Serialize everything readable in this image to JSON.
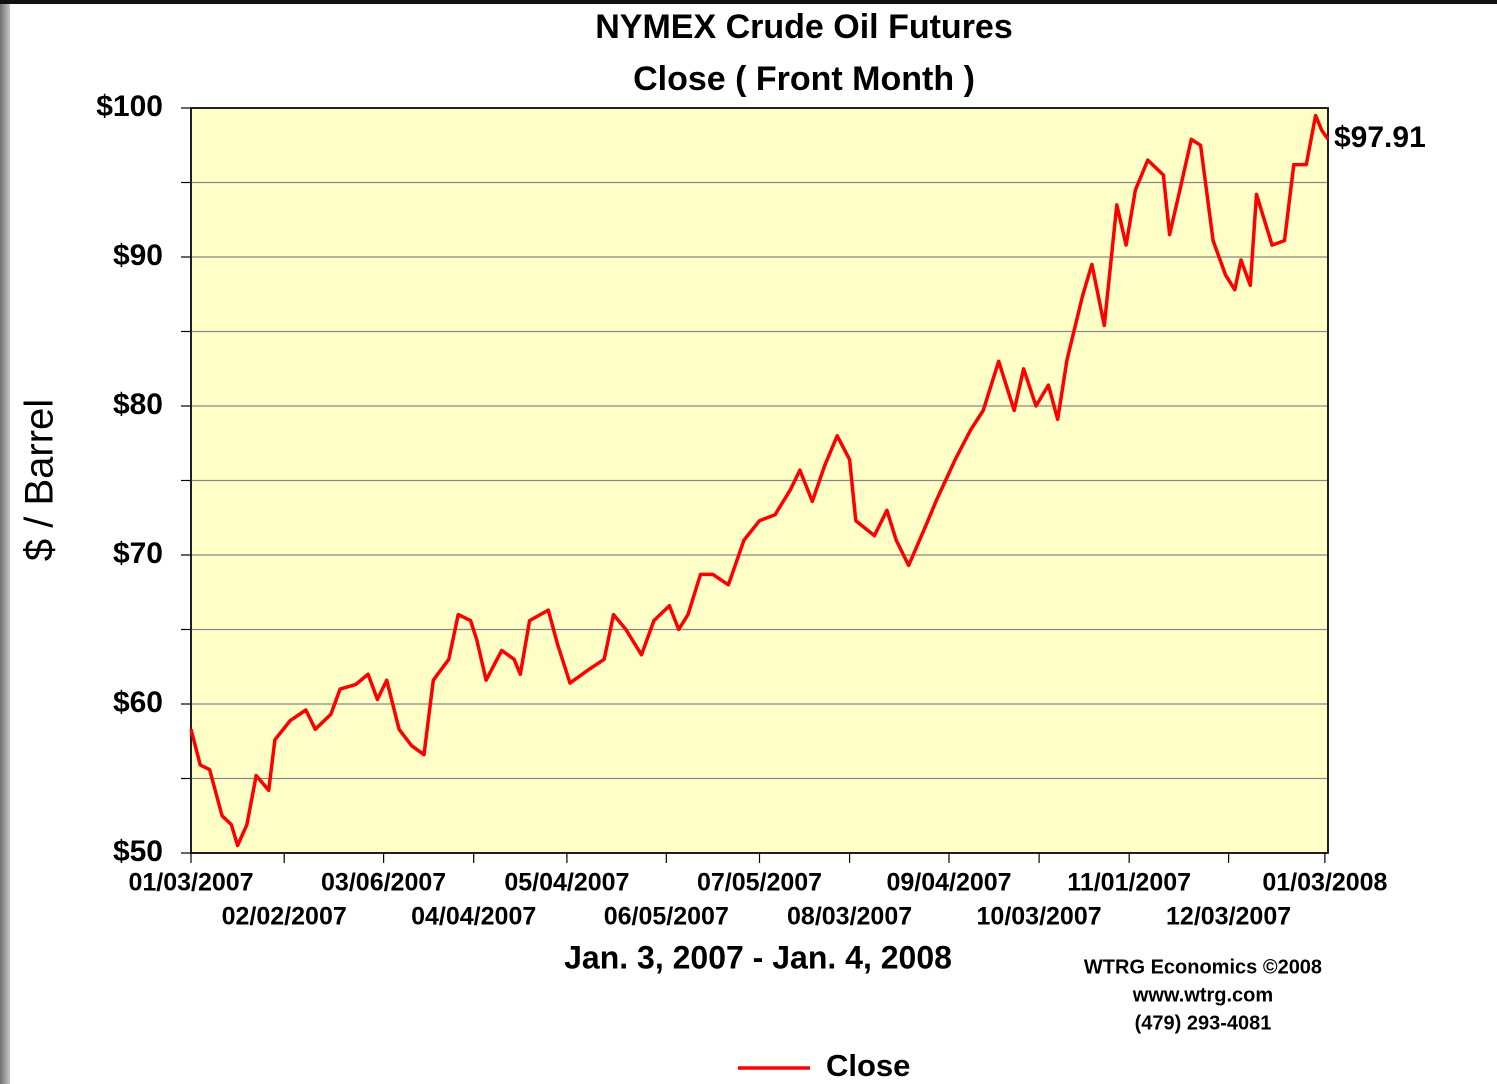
{
  "chart_data": {
    "type": "line",
    "title": "NYMEX Crude Oil Futures",
    "subtitle": "Close ( Front Month )",
    "y_label": "$ / Barrel",
    "x_label": "Jan. 3, 2007 - Jan. 4, 2008",
    "annotations": [
      "WTRG Economics  ©2008",
      "www.wtrg.com",
      "(479) 293-4081"
    ],
    "xlim": [
      "01/03/2007",
      "01/04/2008"
    ],
    "xticks": [
      "01/03/2007",
      "02/02/2007",
      "03/06/2007",
      "04/04/2007",
      "05/04/2007",
      "06/05/2007",
      "07/05/2007",
      "08/03/2007",
      "09/04/2007",
      "10/03/2007",
      "11/01/2007",
      "12/03/2007",
      "01/03/2008"
    ],
    "ylim": [
      50,
      100
    ],
    "yticks": [
      {
        "value": 50,
        "label": "$50"
      },
      {
        "value": 60,
        "label": "$60"
      },
      {
        "value": 70,
        "label": "$70"
      },
      {
        "value": 80,
        "label": "$80"
      },
      {
        "value": 90,
        "label": "$90"
      },
      {
        "value": 100,
        "label": "$100"
      }
    ],
    "yminor": [
      55,
      65,
      75,
      85,
      95
    ],
    "grid": true,
    "plot_background": "#ffffc8",
    "legend": "bottom",
    "series": [
      {
        "name": "Close",
        "color": "#ff0000",
        "x": [
          "01/03/2007",
          "01/06/2007",
          "01/09/2007",
          "01/13/2007",
          "01/16/2007",
          "01/18/2007",
          "01/21/2007",
          "01/24/2007",
          "01/28/2007",
          "01/30/2007",
          "02/04/2007",
          "02/09/2007",
          "02/12/2007",
          "02/17/2007",
          "02/20/2007",
          "02/25/2007",
          "03/01/2007",
          "03/04/2007",
          "03/07/2007",
          "03/11/2007",
          "03/15/2007",
          "03/19/2007",
          "03/22/2007",
          "03/27/2007",
          "03/30/2007",
          "04/03/2007",
          "04/05/2007",
          "04/08/2007",
          "04/13/2007",
          "04/17/2007",
          "04/19/2007",
          "04/22/2007",
          "04/28/2007",
          "05/01/2007",
          "05/05/2007",
          "05/11/2007",
          "05/16/2007",
          "05/19/2007",
          "05/23/2007",
          "05/28/2007",
          "06/01/2007",
          "06/06/2007",
          "06/09/2007",
          "06/12/2007",
          "06/16/2007",
          "06/20/2007",
          "06/25/2007",
          "06/30/2007",
          "07/05/2007",
          "07/10/2007",
          "07/15/2007",
          "07/18/2007",
          "07/22/2007",
          "07/26/2007",
          "07/30/2007",
          "08/03/2007",
          "08/05/2007",
          "08/11/2007",
          "08/15/2007",
          "08/18/2007",
          "08/22/2007",
          "08/27/2007",
          "08/31/2007",
          "09/06/2007",
          "09/11/2007",
          "09/15/2007",
          "09/20/2007",
          "09/25/2007",
          "09/28/2007",
          "10/02/2007",
          "10/06/2007",
          "10/09/2007",
          "10/12/2007",
          "10/17/2007",
          "10/20/2007",
          "10/24/2007",
          "10/28/2007",
          "10/31/2007",
          "11/03/2007",
          "11/07/2007",
          "11/12/2007",
          "11/14/2007",
          "11/17/2007",
          "11/21/2007",
          "11/24/2007",
          "11/28/2007",
          "12/02/2007",
          "12/05/2007",
          "12/07/2007",
          "12/10/2007",
          "12/12/2007",
          "12/17/2007",
          "12/21/2007",
          "12/24/2007",
          "12/28/2007",
          "12/31/2007",
          "01/02/2008",
          "01/04/2008"
        ],
        "values": [
          58.3,
          55.9,
          55.6,
          52.5,
          51.9,
          50.5,
          51.9,
          55.2,
          54.2,
          57.6,
          58.9,
          59.6,
          58.3,
          59.3,
          61.0,
          61.3,
          62.0,
          60.3,
          61.6,
          58.3,
          57.2,
          56.6,
          61.6,
          63.0,
          66.0,
          65.6,
          64.3,
          61.6,
          63.6,
          63.0,
          62.0,
          65.6,
          66.3,
          64.0,
          61.4,
          62.3,
          63.0,
          66.0,
          65.0,
          63.3,
          65.6,
          66.6,
          65.0,
          66.0,
          68.7,
          68.7,
          68.0,
          71.0,
          72.3,
          72.7,
          74.4,
          75.7,
          73.6,
          76.0,
          78.0,
          76.4,
          72.3,
          71.3,
          73.0,
          71.0,
          69.3,
          71.7,
          73.7,
          76.4,
          78.4,
          79.7,
          83.0,
          79.7,
          82.5,
          80.0,
          81.4,
          79.1,
          83.1,
          87.4,
          89.5,
          85.4,
          93.5,
          90.8,
          94.5,
          96.5,
          95.5,
          91.5,
          94.2,
          97.9,
          97.5,
          91.1,
          88.8,
          87.8,
          89.8,
          88.1,
          94.2,
          90.8,
          91.1,
          96.2,
          96.2,
          99.5,
          98.5,
          97.91
        ],
        "value_labels": [
          null,
          null,
          null,
          null,
          null,
          null,
          null,
          null,
          null,
          null,
          null,
          null,
          null,
          null,
          null,
          null,
          null,
          null,
          null,
          null,
          null,
          null,
          null,
          null,
          null,
          null,
          null,
          null,
          null,
          null,
          null,
          null,
          null,
          null,
          null,
          null,
          null,
          null,
          null,
          null,
          null,
          null,
          null,
          null,
          null,
          null,
          null,
          null,
          null,
          null,
          null,
          null,
          null,
          null,
          null,
          null,
          null,
          null,
          null,
          null,
          null,
          null,
          null,
          null,
          null,
          null,
          null,
          null,
          null,
          null,
          null,
          null,
          null,
          null,
          null,
          null,
          null,
          null,
          null,
          null,
          null,
          null,
          null,
          null,
          null,
          null,
          null,
          null,
          null,
          null,
          null,
          null,
          null,
          null,
          null,
          null,
          null,
          "$97.91"
        ]
      }
    ]
  }
}
